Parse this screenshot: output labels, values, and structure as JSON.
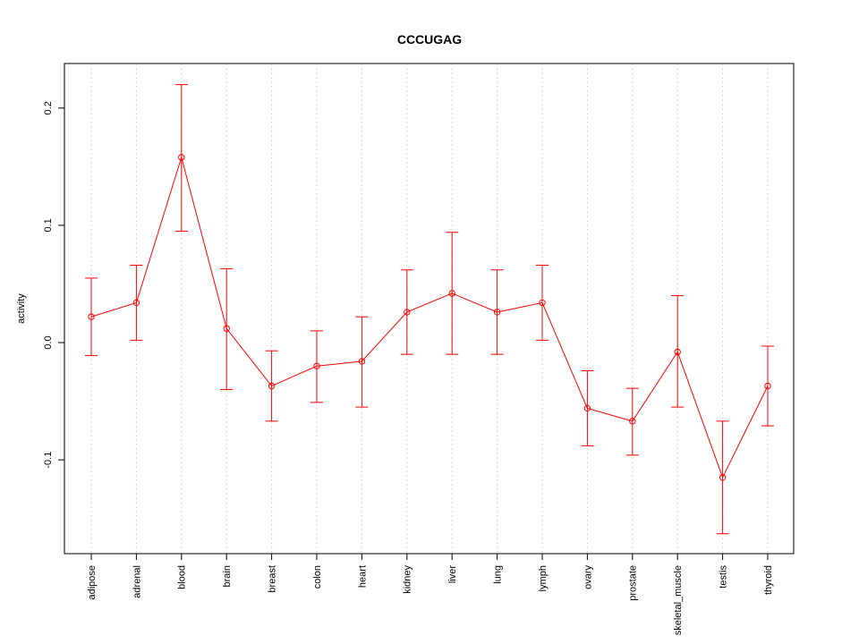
{
  "chart_data": {
    "type": "line",
    "title": "CCCUGAG",
    "xlabel": "",
    "ylabel": "activity",
    "categories": [
      "adipose",
      "adrenal",
      "blood",
      "brain",
      "breast",
      "colon",
      "heart",
      "kidney",
      "liver",
      "lung",
      "lymph",
      "ovary",
      "prostate",
      "skeletal_muscle",
      "testis",
      "thyroid"
    ],
    "series": [
      {
        "values": [
          0.022,
          0.034,
          0.158,
          0.012,
          -0.037,
          -0.02,
          -0.016,
          0.026,
          0.042,
          0.026,
          0.034,
          -0.056,
          -0.067,
          -0.008,
          -0.115,
          -0.037
        ],
        "upper": [
          0.055,
          0.066,
          0.22,
          0.063,
          -0.007,
          0.01,
          0.022,
          0.062,
          0.094,
          0.062,
          0.066,
          -0.024,
          -0.039,
          0.04,
          -0.067,
          -0.003
        ],
        "lower": [
          -0.011,
          0.002,
          0.095,
          -0.04,
          -0.067,
          -0.051,
          -0.055,
          -0.01,
          -0.01,
          -0.01,
          0.002,
          -0.088,
          -0.096,
          -0.055,
          -0.163,
          -0.071
        ]
      }
    ],
    "yticks": [
      -0.1,
      0.0,
      0.1,
      0.2
    ],
    "ytick_labels": [
      "-0.1",
      "0.0",
      "0.1",
      "0.2"
    ],
    "ylim": [
      -0.18,
      0.238
    ],
    "grid": true,
    "colors": {
      "series": "#ff0000",
      "grid": "#d3d3d3",
      "axis": "#000000"
    }
  }
}
